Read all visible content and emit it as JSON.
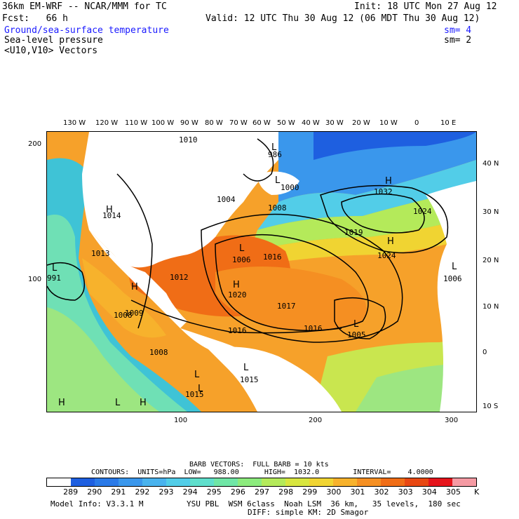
{
  "header": {
    "model": "36km EM-WRF -- NCAR/MMM for TC",
    "fcst": "Fcst:   66 h",
    "init": "Init: 18 UTC Mon 27 Aug 12",
    "valid": "Valid: 12 UTC Thu 30 Aug 12 (06 MDT Thu 30 Aug 12)",
    "field1": "Ground/sea-surface temperature",
    "field1_sm": "sm= 4",
    "field2": "Sea-level pressure",
    "field2_sm": "sm= 2",
    "field3": "<U10,V10> Vectors"
  },
  "top_lon_labels": [
    "130 W",
    "120 W",
    "110 W",
    "100 W",
    "90 W",
    "80 W",
    "70 W",
    "60 W",
    "50 W",
    "40 W",
    "30 W",
    "20 W",
    "10 W",
    "0",
    "10 E"
  ],
  "right_lat_labels": [
    "40 N",
    "30 N",
    "20 N",
    "10 N",
    "0",
    "10 S"
  ],
  "left_grid_labels": [
    "200",
    "100"
  ],
  "bottom_grid_labels": [
    "100",
    "200",
    "300"
  ],
  "pressure_labels": [
    "1010",
    "986",
    "1000",
    "1004",
    "1008",
    "1032",
    "1014",
    "1024",
    "1019",
    "1013",
    "1006",
    "1016",
    "1024",
    "991",
    "1012",
    "1020",
    "1017",
    "1006",
    "1016",
    "1016",
    "1005",
    "1009",
    "1008",
    "1015",
    "1015",
    "1008"
  ],
  "map_symbols": [
    "L",
    "L",
    "H",
    "H",
    "L",
    "L",
    "L",
    "H",
    "H",
    "H",
    "L",
    "L",
    "L",
    "L",
    "H",
    "L",
    "H"
  ],
  "footer": {
    "barb": "BARB VECTORS:  FULL BARB = 10 kts",
    "contours": "CONTOURS:  UNITS=hPa  LOW=   988.00      HIGH=  1032.0        INTERVAL=    4.0000",
    "legend_values": [
      "289",
      "290",
      "291",
      "292",
      "293",
      "294",
      "295",
      "296",
      "297",
      "298",
      "299",
      "300",
      "301",
      "302",
      "303",
      "304",
      "305"
    ],
    "legend_unit": "K",
    "legend_colors": [
      "#1e5fe0",
      "#2a7ae8",
      "#3a97ec",
      "#49b3ee",
      "#52cde8",
      "#5fdfcc",
      "#6fe6a6",
      "#8ceb7d",
      "#b4ea5a",
      "#d8e63f",
      "#f0d432",
      "#f7b22c",
      "#f58f22",
      "#f06d16",
      "#e84812",
      "#e5141b",
      "#f59aa3"
    ],
    "model_info": "Model Info: V3.3.1 M",
    "physics1": "YSU PBL  WSM 6class  Noah LSM  36 km,   35 levels,  180 sec",
    "physics2": "DIFF: simple KM: 2D Smagor"
  }
}
